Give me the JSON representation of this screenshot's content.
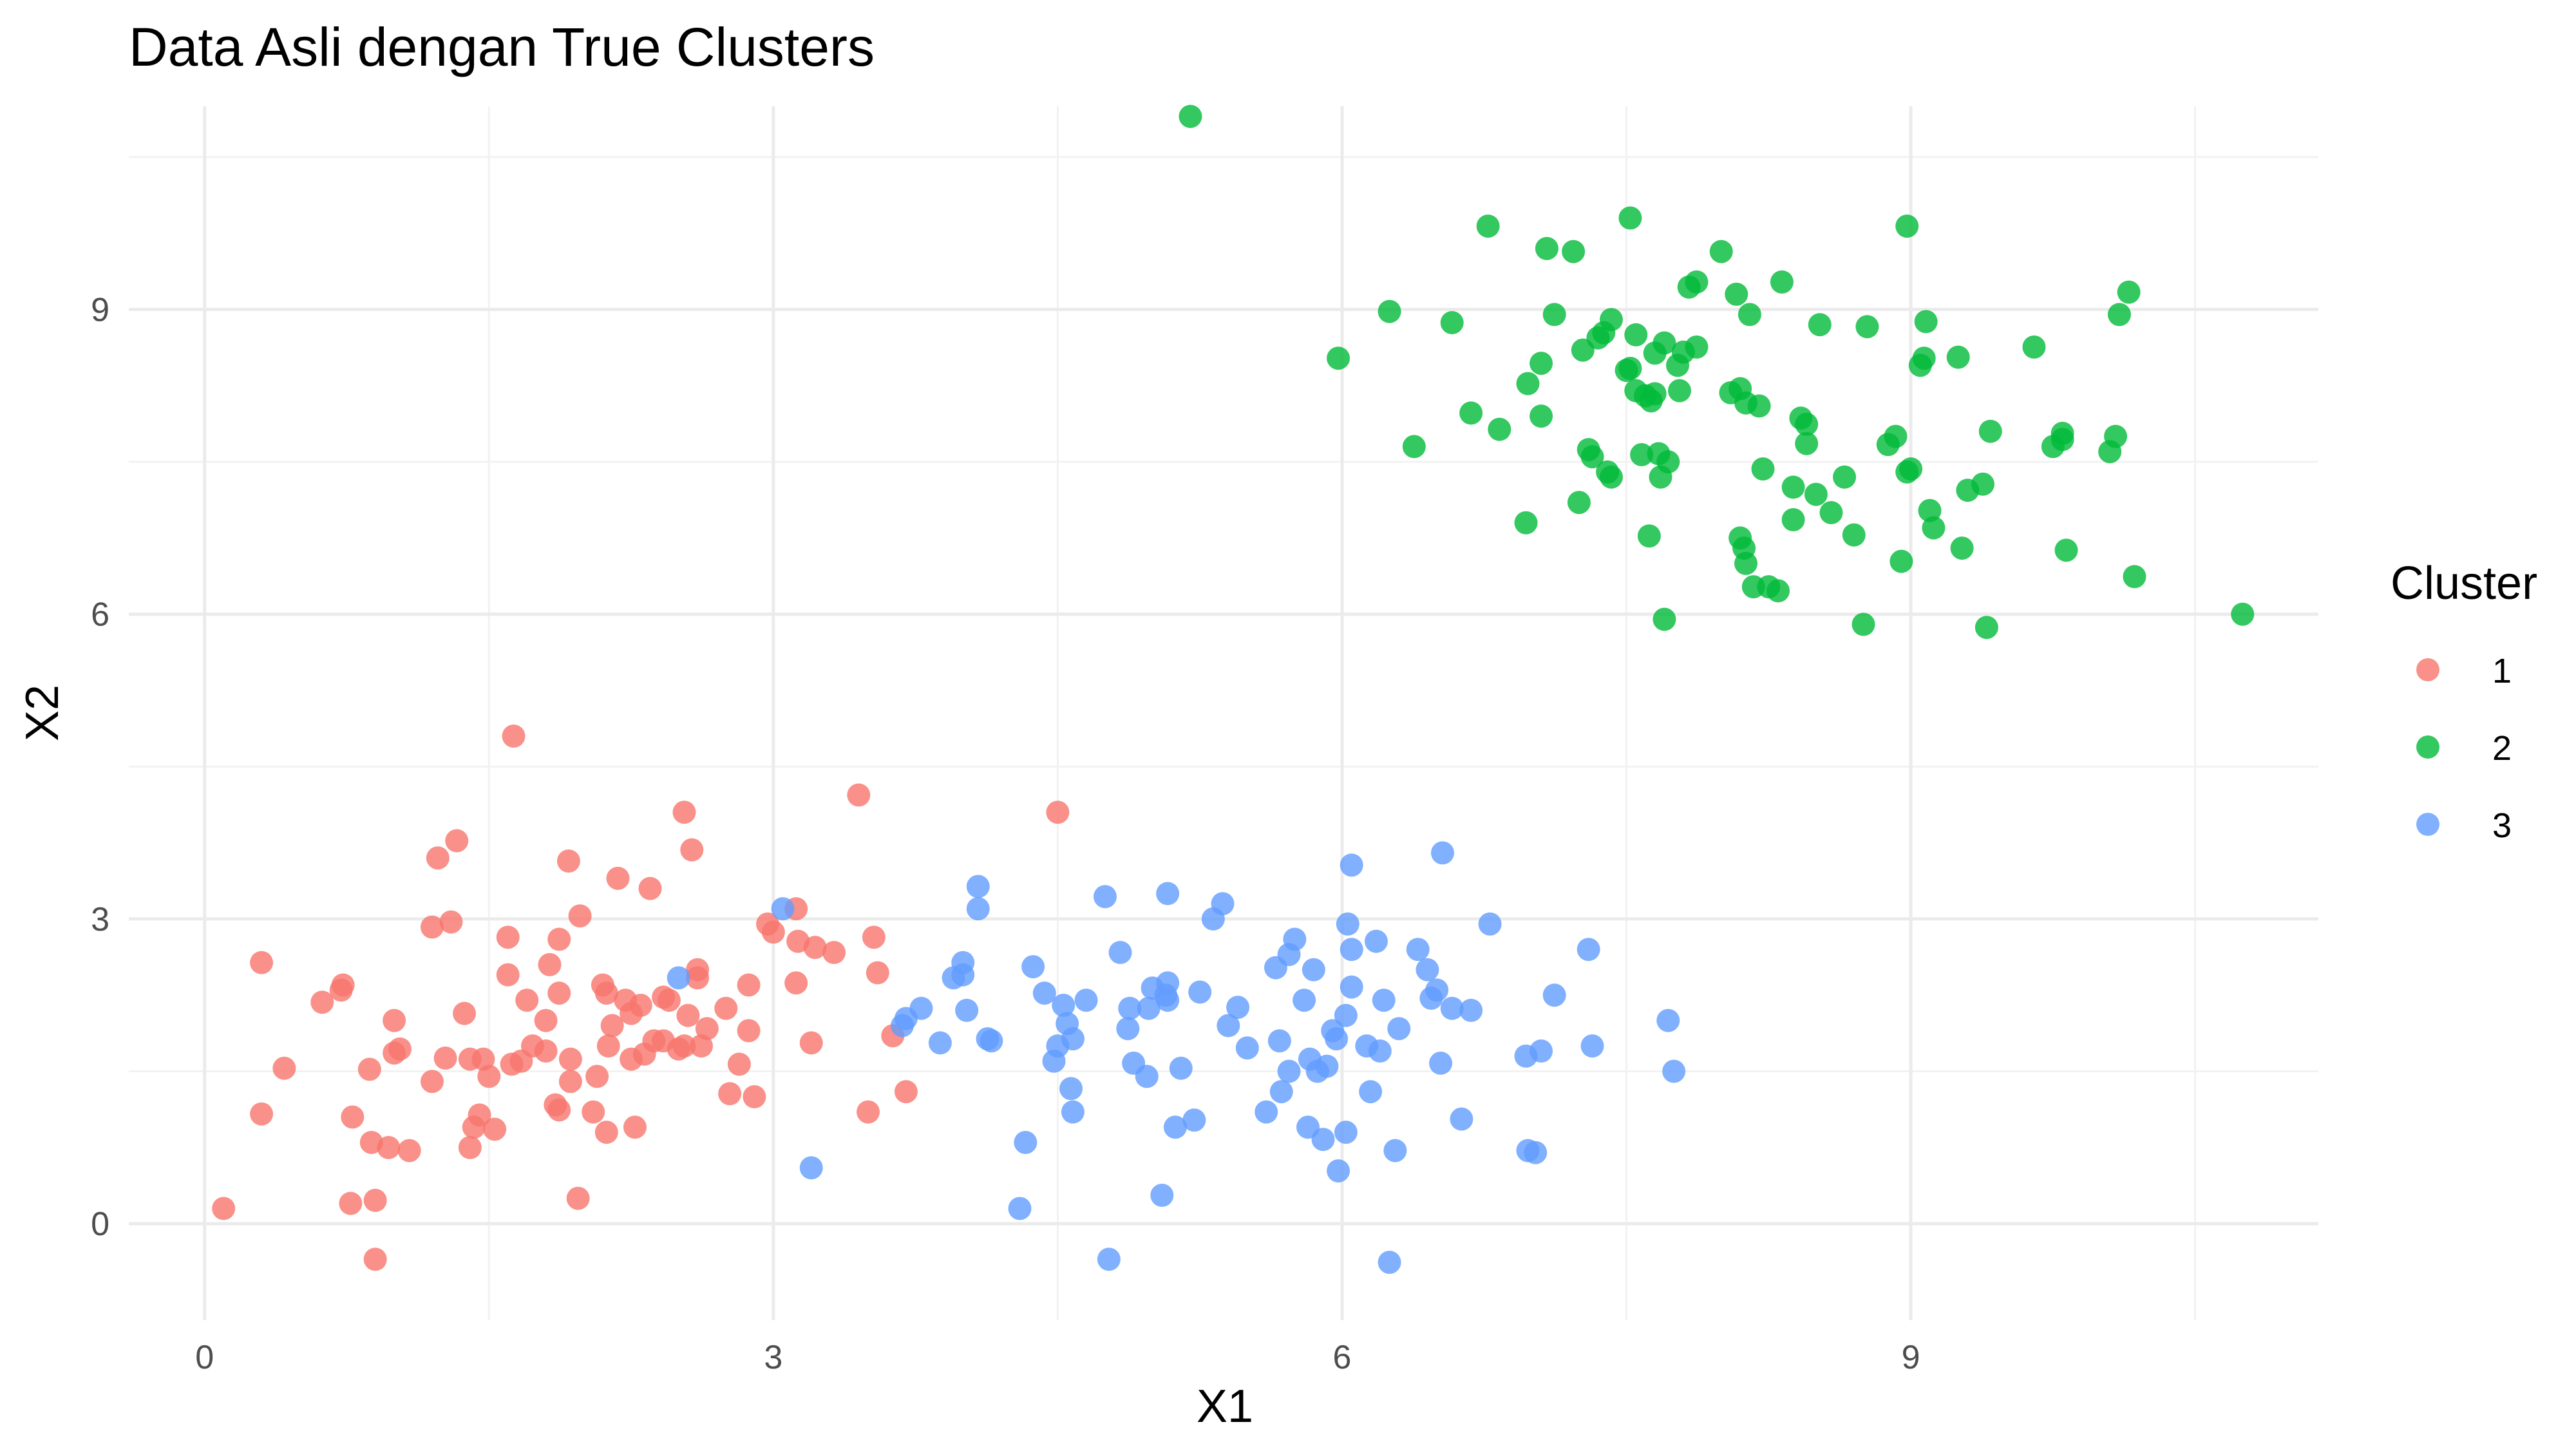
{
  "chart_data": {
    "type": "scatter",
    "title": "Data Asli dengan True Clusters",
    "xlabel": "X1",
    "ylabel": "X2",
    "xlim": [
      -0.4,
      11.15
    ],
    "ylim": [
      -0.95,
      11.0
    ],
    "x_ticks": [
      0,
      3,
      6,
      9
    ],
    "y_ticks": [
      0,
      3,
      6,
      9
    ],
    "grid": true,
    "legend_title": "Cluster",
    "legend_position": "right",
    "series": [
      {
        "name": "1",
        "color": "#F8766D",
        "points": [
          [
            0.1,
            0.15
          ],
          [
            0.3,
            1.08
          ],
          [
            0.3,
            2.57
          ],
          [
            0.42,
            1.53
          ],
          [
            0.62,
            2.18
          ],
          [
            0.72,
            2.3
          ],
          [
            0.73,
            2.35
          ],
          [
            0.77,
            0.2
          ],
          [
            0.78,
            1.05
          ],
          [
            0.87,
            1.52
          ],
          [
            0.88,
            0.8
          ],
          [
            0.9,
            -0.35
          ],
          [
            0.9,
            0.23
          ],
          [
            0.97,
            0.75
          ],
          [
            1.0,
            1.68
          ],
          [
            1.0,
            2.0
          ],
          [
            1.03,
            1.72
          ],
          [
            1.08,
            0.72
          ],
          [
            1.2,
            1.4
          ],
          [
            1.2,
            2.92
          ],
          [
            1.23,
            3.6
          ],
          [
            1.27,
            1.63
          ],
          [
            1.3,
            2.97
          ],
          [
            1.33,
            3.77
          ],
          [
            1.37,
            2.07
          ],
          [
            1.4,
            0.75
          ],
          [
            1.4,
            1.62
          ],
          [
            1.42,
            0.95
          ],
          [
            1.45,
            1.07
          ],
          [
            1.47,
            1.62
          ],
          [
            1.5,
            1.45
          ],
          [
            1.53,
            0.93
          ],
          [
            1.6,
            2.45
          ],
          [
            1.6,
            2.82
          ],
          [
            1.62,
            1.57
          ],
          [
            1.63,
            4.8
          ],
          [
            1.67,
            1.6
          ],
          [
            1.7,
            2.2
          ],
          [
            1.73,
            1.75
          ],
          [
            1.8,
            1.7
          ],
          [
            1.8,
            2.0
          ],
          [
            1.82,
            2.55
          ],
          [
            1.85,
            1.17
          ],
          [
            1.87,
            1.12
          ],
          [
            1.87,
            2.27
          ],
          [
            1.87,
            2.8
          ],
          [
            1.92,
            3.57
          ],
          [
            1.93,
            1.62
          ],
          [
            1.93,
            1.4
          ],
          [
            1.97,
            0.25
          ],
          [
            1.98,
            3.03
          ],
          [
            2.05,
            1.1
          ],
          [
            2.07,
            1.45
          ],
          [
            2.1,
            2.35
          ],
          [
            2.12,
            0.9
          ],
          [
            2.12,
            2.27
          ],
          [
            2.13,
            1.75
          ],
          [
            2.15,
            1.95
          ],
          [
            2.18,
            3.4
          ],
          [
            2.22,
            2.2
          ],
          [
            2.25,
            2.07
          ],
          [
            2.25,
            1.62
          ],
          [
            2.27,
            0.95
          ],
          [
            2.3,
            2.15
          ],
          [
            2.32,
            1.67
          ],
          [
            2.35,
            3.3
          ],
          [
            2.37,
            1.8
          ],
          [
            2.42,
            1.8
          ],
          [
            2.42,
            2.23
          ],
          [
            2.45,
            2.2
          ],
          [
            2.5,
            1.72
          ],
          [
            2.53,
            1.75
          ],
          [
            2.53,
            4.05
          ],
          [
            2.55,
            2.05
          ],
          [
            2.57,
            3.68
          ],
          [
            2.6,
            2.42
          ],
          [
            2.6,
            2.5
          ],
          [
            2.62,
            1.75
          ],
          [
            2.65,
            1.92
          ],
          [
            2.75,
            2.12
          ],
          [
            2.77,
            1.28
          ],
          [
            2.82,
            1.57
          ],
          [
            2.87,
            2.35
          ],
          [
            2.87,
            1.9
          ],
          [
            2.9,
            1.25
          ],
          [
            2.97,
            2.95
          ],
          [
            3.0,
            2.87
          ],
          [
            3.12,
            2.37
          ],
          [
            3.12,
            3.1
          ],
          [
            3.13,
            2.78
          ],
          [
            3.2,
            1.78
          ],
          [
            3.22,
            2.72
          ],
          [
            3.32,
            2.67
          ],
          [
            3.45,
            4.22
          ],
          [
            3.5,
            1.1
          ],
          [
            3.53,
            2.82
          ],
          [
            3.55,
            2.47
          ],
          [
            3.63,
            1.85
          ],
          [
            3.7,
            1.3
          ],
          [
            4.5,
            4.05
          ]
        ]
      },
      {
        "name": "2",
        "color": "#00BA38",
        "points": [
          [
            5.2,
            10.9
          ],
          [
            5.98,
            8.52
          ],
          [
            6.25,
            8.98
          ],
          [
            6.38,
            7.65
          ],
          [
            6.58,
            8.87
          ],
          [
            6.68,
            7.98
          ],
          [
            6.77,
            9.82
          ],
          [
            6.83,
            7.82
          ],
          [
            6.97,
            6.9
          ],
          [
            6.98,
            8.27
          ],
          [
            7.05,
            7.95
          ],
          [
            7.05,
            8.47
          ],
          [
            7.08,
            9.6
          ],
          [
            7.12,
            8.95
          ],
          [
            7.22,
            9.57
          ],
          [
            7.25,
            7.1
          ],
          [
            7.27,
            8.6
          ],
          [
            7.3,
            7.62
          ],
          [
            7.32,
            7.55
          ],
          [
            7.35,
            8.72
          ],
          [
            7.38,
            8.77
          ],
          [
            7.4,
            7.4
          ],
          [
            7.42,
            8.9
          ],
          [
            7.42,
            7.35
          ],
          [
            7.5,
            8.4
          ],
          [
            7.52,
            8.42
          ],
          [
            7.52,
            9.9
          ],
          [
            7.55,
            8.2
          ],
          [
            7.55,
            8.75
          ],
          [
            7.58,
            7.57
          ],
          [
            7.6,
            8.15
          ],
          [
            7.62,
            6.77
          ],
          [
            7.63,
            8.1
          ],
          [
            7.65,
            8.57
          ],
          [
            7.65,
            8.17
          ],
          [
            7.67,
            7.58
          ],
          [
            7.68,
            7.35
          ],
          [
            7.7,
            5.95
          ],
          [
            7.7,
            8.67
          ],
          [
            7.72,
            7.5
          ],
          [
            7.77,
            8.45
          ],
          [
            7.78,
            8.2
          ],
          [
            7.8,
            8.58
          ],
          [
            7.83,
            9.22
          ],
          [
            7.87,
            8.63
          ],
          [
            7.87,
            9.27
          ],
          [
            8.0,
            9.57
          ],
          [
            8.05,
            8.18
          ],
          [
            8.08,
            9.15
          ],
          [
            8.1,
            6.75
          ],
          [
            8.1,
            8.22
          ],
          [
            8.12,
            6.65
          ],
          [
            8.13,
            6.5
          ],
          [
            8.13,
            8.08
          ],
          [
            8.15,
            8.95
          ],
          [
            8.17,
            6.27
          ],
          [
            8.2,
            8.05
          ],
          [
            8.22,
            7.43
          ],
          [
            8.25,
            6.27
          ],
          [
            8.3,
            6.23
          ],
          [
            8.32,
            9.27
          ],
          [
            8.38,
            7.25
          ],
          [
            8.38,
            6.93
          ],
          [
            8.42,
            7.93
          ],
          [
            8.45,
            7.68
          ],
          [
            8.45,
            7.87
          ],
          [
            8.5,
            7.18
          ],
          [
            8.52,
            8.85
          ],
          [
            8.58,
            7.0
          ],
          [
            8.65,
            7.35
          ],
          [
            8.7,
            6.78
          ],
          [
            8.75,
            5.9
          ],
          [
            8.77,
            8.83
          ],
          [
            8.88,
            7.67
          ],
          [
            8.92,
            7.75
          ],
          [
            8.95,
            6.52
          ],
          [
            8.98,
            7.4
          ],
          [
            8.98,
            9.82
          ],
          [
            9.0,
            7.43
          ],
          [
            9.05,
            8.45
          ],
          [
            9.07,
            8.52
          ],
          [
            9.08,
            8.88
          ],
          [
            9.1,
            7.02
          ],
          [
            9.12,
            6.85
          ],
          [
            9.25,
            8.53
          ],
          [
            9.27,
            6.65
          ],
          [
            9.3,
            7.22
          ],
          [
            9.38,
            7.28
          ],
          [
            9.4,
            5.87
          ],
          [
            9.42,
            7.8
          ],
          [
            9.65,
            8.63
          ],
          [
            9.75,
            7.65
          ],
          [
            9.8,
            7.78
          ],
          [
            9.8,
            7.72
          ],
          [
            9.82,
            6.63
          ],
          [
            10.05,
            7.6
          ],
          [
            10.08,
            7.75
          ],
          [
            10.1,
            8.95
          ],
          [
            10.15,
            9.17
          ],
          [
            10.18,
            6.37
          ],
          [
            10.75,
            6.0
          ]
        ]
      },
      {
        "name": "3",
        "color": "#619CFF",
        "points": [
          [
            2.5,
            2.42
          ],
          [
            3.05,
            3.1
          ],
          [
            3.2,
            0.55
          ],
          [
            3.68,
            1.95
          ],
          [
            3.7,
            2.02
          ],
          [
            3.78,
            2.12
          ],
          [
            3.88,
            1.78
          ],
          [
            3.95,
            2.42
          ],
          [
            4.0,
            2.57
          ],
          [
            4.0,
            2.45
          ],
          [
            4.02,
            2.1
          ],
          [
            4.08,
            3.32
          ],
          [
            4.08,
            3.1
          ],
          [
            4.13,
            1.82
          ],
          [
            4.15,
            1.8
          ],
          [
            4.3,
            0.15
          ],
          [
            4.33,
            0.8
          ],
          [
            4.37,
            2.53
          ],
          [
            4.43,
            2.27
          ],
          [
            4.48,
            1.6
          ],
          [
            4.5,
            1.75
          ],
          [
            4.53,
            2.15
          ],
          [
            4.55,
            1.97
          ],
          [
            4.57,
            1.33
          ],
          [
            4.58,
            1.1
          ],
          [
            4.58,
            1.82
          ],
          [
            4.65,
            2.2
          ],
          [
            4.75,
            3.22
          ],
          [
            4.77,
            -0.35
          ],
          [
            4.83,
            2.67
          ],
          [
            4.87,
            1.92
          ],
          [
            4.88,
            2.12
          ],
          [
            4.9,
            1.58
          ],
          [
            4.97,
            1.45
          ],
          [
            4.98,
            2.12
          ],
          [
            5.0,
            2.32
          ],
          [
            5.05,
            0.28
          ],
          [
            5.07,
            2.25
          ],
          [
            5.08,
            2.2
          ],
          [
            5.08,
            2.37
          ],
          [
            5.08,
            3.25
          ],
          [
            5.12,
            0.95
          ],
          [
            5.15,
            1.53
          ],
          [
            5.22,
            1.02
          ],
          [
            5.25,
            2.28
          ],
          [
            5.32,
            3.0
          ],
          [
            5.37,
            3.15
          ],
          [
            5.4,
            1.95
          ],
          [
            5.45,
            2.13
          ],
          [
            5.5,
            1.73
          ],
          [
            5.6,
            1.1
          ],
          [
            5.65,
            2.52
          ],
          [
            5.67,
            1.8
          ],
          [
            5.68,
            1.3
          ],
          [
            5.72,
            1.5
          ],
          [
            5.72,
            2.65
          ],
          [
            5.75,
            2.8
          ],
          [
            5.8,
            2.2
          ],
          [
            5.82,
            0.95
          ],
          [
            5.83,
            1.62
          ],
          [
            5.85,
            2.5
          ],
          [
            5.87,
            1.5
          ],
          [
            5.9,
            0.83
          ],
          [
            5.92,
            1.55
          ],
          [
            5.95,
            1.9
          ],
          [
            5.97,
            1.82
          ],
          [
            5.98,
            0.52
          ],
          [
            6.02,
            2.05
          ],
          [
            6.02,
            0.9
          ],
          [
            6.03,
            2.95
          ],
          [
            6.05,
            3.53
          ],
          [
            6.05,
            2.7
          ],
          [
            6.13,
            1.75
          ],
          [
            6.15,
            1.3
          ],
          [
            6.18,
            2.78
          ],
          [
            6.2,
            1.7
          ],
          [
            6.22,
            2.2
          ],
          [
            6.25,
            -0.38
          ],
          [
            6.28,
            0.72
          ],
          [
            6.3,
            1.92
          ],
          [
            6.4,
            2.7
          ],
          [
            6.45,
            2.5
          ],
          [
            6.47,
            2.22
          ],
          [
            6.5,
            2.3
          ],
          [
            6.52,
            1.58
          ],
          [
            6.53,
            3.65
          ],
          [
            6.58,
            2.12
          ],
          [
            6.63,
            1.03
          ],
          [
            6.68,
            2.1
          ],
          [
            6.78,
            2.95
          ],
          [
            6.97,
            1.65
          ],
          [
            6.98,
            0.72
          ],
          [
            7.02,
            0.7
          ],
          [
            7.05,
            1.7
          ],
          [
            7.12,
            2.25
          ],
          [
            7.3,
            2.7
          ],
          [
            7.32,
            1.75
          ],
          [
            7.72,
            2.0
          ],
          [
            7.75,
            1.5
          ],
          [
            6.05,
            2.33
          ]
        ]
      }
    ]
  }
}
